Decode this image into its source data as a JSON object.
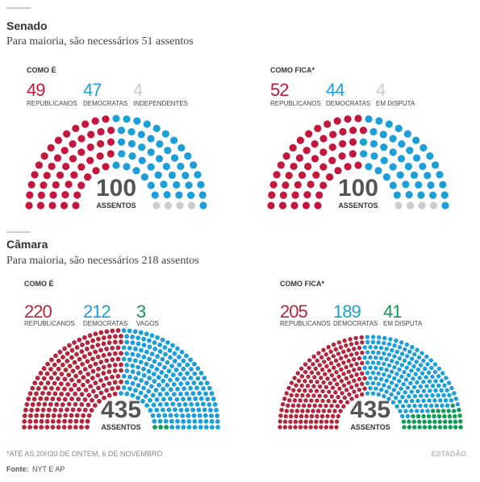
{
  "sections": [
    {
      "title": "Senado",
      "subtitle": "Para maioria, são necessários 51 assentos",
      "chart_data": [
        {
          "type": "parliament",
          "label": "COMO É",
          "total": 100,
          "total_label": "ASSENTOS",
          "series": [
            {
              "name": "REPUBLICANOS",
              "color": "#c4173e",
              "value": 49
            },
            {
              "name": "DEMOCRATAS",
              "color": "#1c9fd8",
              "value": 47
            },
            {
              "name": "INDEPENDENTES",
              "color": "#cccccc",
              "value": 4
            }
          ]
        },
        {
          "type": "parliament",
          "label": "COMO FICA*",
          "total": 100,
          "total_label": "ASSENTOS",
          "series": [
            {
              "name": "REPUBLICANOS",
              "color": "#c4173e",
              "value": 52
            },
            {
              "name": "DEMOCRATAS",
              "color": "#1c9fd8",
              "value": 44
            },
            {
              "name": "EM DISPUTA",
              "color": "#cccccc",
              "value": 4
            }
          ]
        }
      ]
    },
    {
      "title": "Câmara",
      "subtitle": "Para maioria, são necessários 218 assentos",
      "chart_data": [
        {
          "type": "parliament",
          "label": "COMO É",
          "total": 435,
          "total_label": "ASSENTOS",
          "series": [
            {
              "name": "REPUBLICANOS",
              "color": "#b3273d",
              "value": 220
            },
            {
              "name": "DEMOCRATAS",
              "color": "#1c9fd8",
              "value": 212
            },
            {
              "name": "VAGOS",
              "color": "#129a56",
              "value": 3
            }
          ]
        },
        {
          "type": "parliament",
          "label": "COMO FICA*",
          "total": 435,
          "total_label": "ASSENTOS",
          "series": [
            {
              "name": "REPUBLICANOS",
              "color": "#b3273d",
              "value": 205
            },
            {
              "name": "DEMOCRATAS",
              "color": "#1c9fd8",
              "value": 189
            },
            {
              "name": "EM DISPUTA",
              "color": "#129a56",
              "value": 41
            }
          ]
        }
      ]
    }
  ],
  "footnote": "*ATÉ AS 20H30 DE ONTEM, 6 DE NOVEMBRO",
  "source_label": "Fonte:",
  "source": "NYT E AP",
  "brand": "ESTADÃO"
}
